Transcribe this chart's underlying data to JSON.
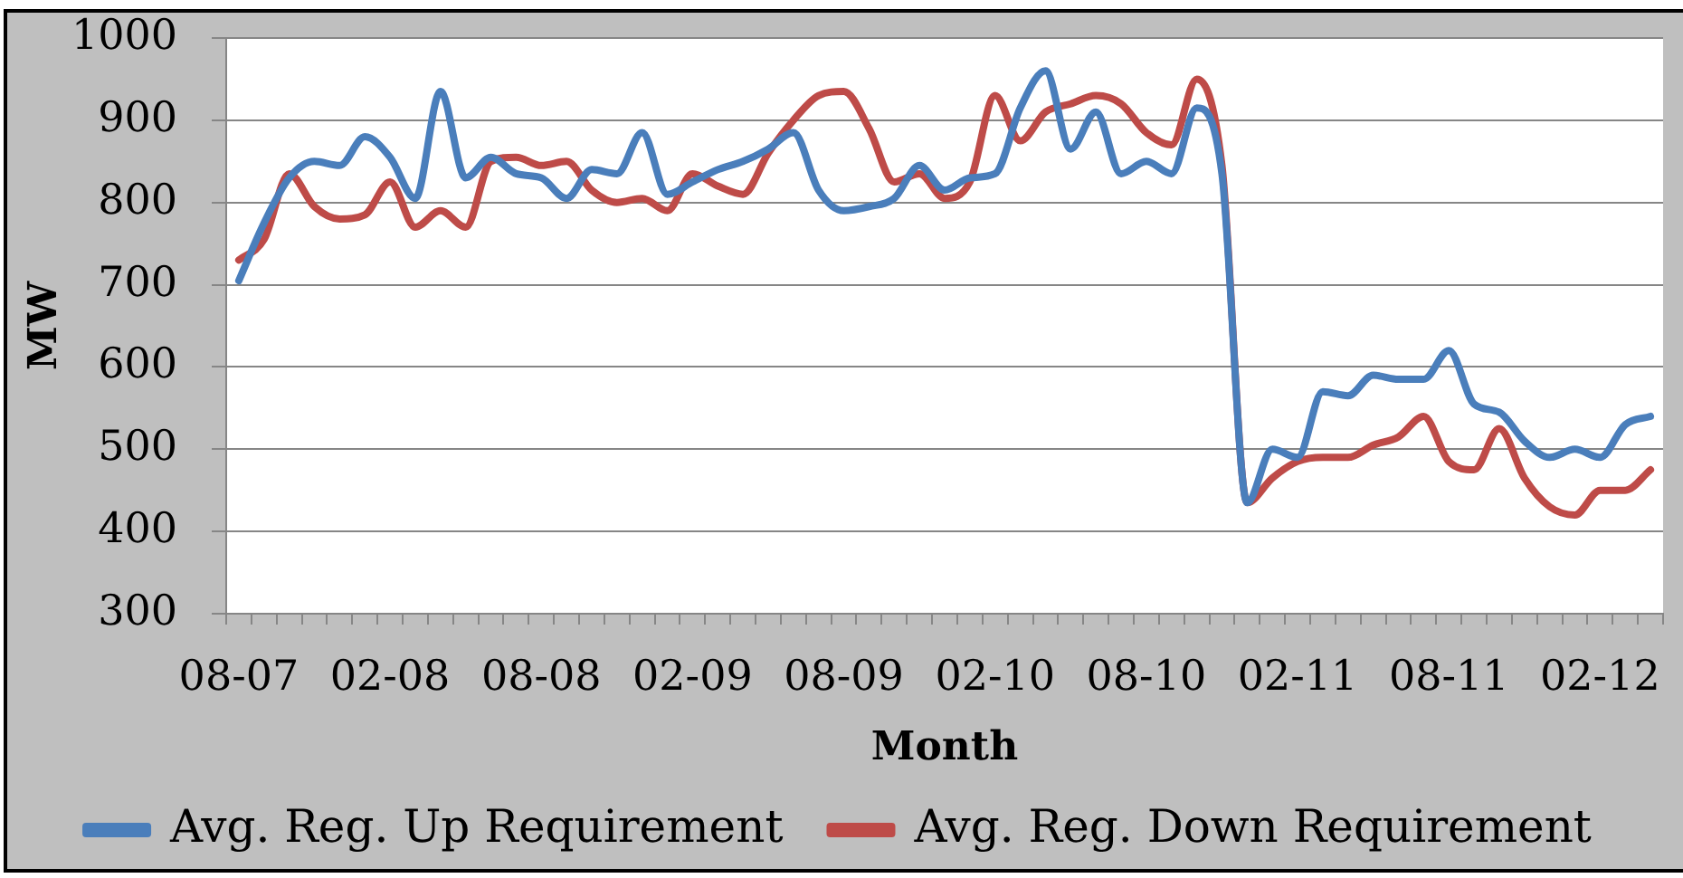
{
  "chart_data": {
    "type": "line",
    "xlabel": "Month",
    "ylabel": "MW",
    "categories": [
      "08-07",
      null,
      null,
      null,
      null,
      null,
      "02-08",
      null,
      null,
      null,
      null,
      null,
      "08-08",
      null,
      null,
      null,
      null,
      null,
      "02-09",
      null,
      null,
      null,
      null,
      null,
      "08-09",
      null,
      null,
      null,
      null,
      null,
      "02-10",
      null,
      null,
      null,
      null,
      null,
      "08-10",
      null,
      null,
      null,
      null,
      null,
      "02-11",
      null,
      null,
      null,
      null,
      null,
      "08-11",
      null,
      null,
      null,
      null,
      null,
      "02-12",
      null,
      null
    ],
    "series": [
      {
        "name": "Avg. Reg. Up Requirement",
        "color": "#4a7ebb",
        "values": [
          705,
          775,
          830,
          850,
          845,
          880,
          855,
          805,
          935,
          830,
          855,
          835,
          830,
          805,
          840,
          835,
          885,
          810,
          825,
          840,
          850,
          865,
          885,
          815,
          790,
          795,
          805,
          845,
          815,
          830,
          835,
          915,
          960,
          865,
          910,
          835,
          850,
          835,
          915,
          835,
          435,
          500,
          490,
          570,
          565,
          590,
          585,
          585,
          620,
          555,
          545,
          510,
          490,
          500,
          490,
          530,
          540
        ]
      },
      {
        "name": "Avg. Reg. Down Requirement",
        "color": "#be4b48",
        "values": [
          730,
          755,
          835,
          795,
          780,
          785,
          825,
          770,
          790,
          770,
          850,
          855,
          845,
          850,
          815,
          800,
          805,
          790,
          835,
          820,
          810,
          860,
          900,
          930,
          935,
          890,
          825,
          835,
          805,
          825,
          930,
          875,
          910,
          920,
          930,
          920,
          885,
          870,
          950,
          845,
          435,
          465,
          485,
          490,
          490,
          505,
          515,
          540,
          485,
          475,
          525,
          465,
          430,
          420,
          450,
          450,
          475
        ]
      }
    ],
    "ylim": [
      300,
      1000
    ],
    "yticks": [
      300,
      400,
      500,
      600,
      700,
      800,
      900,
      1000
    ],
    "grid": "y",
    "legend": "bottom",
    "marker": "none",
    "line_style": "solid"
  }
}
